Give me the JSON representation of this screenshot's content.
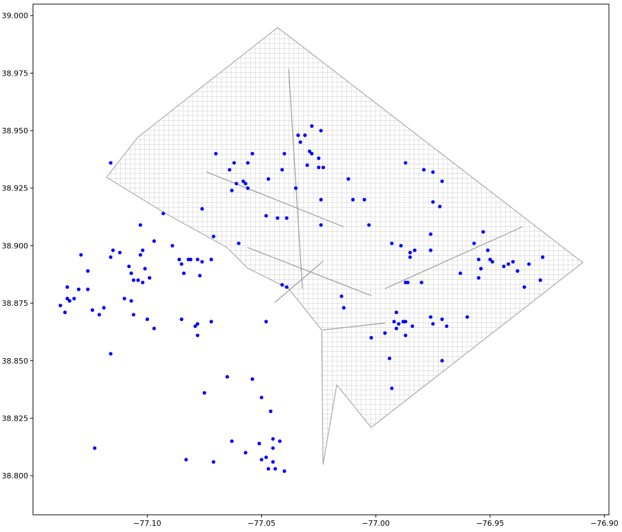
{
  "chart_data": {
    "type": "scatter",
    "color": "#0000ff",
    "xlim": [
      -77.15,
      -76.898
    ],
    "ylim": [
      38.783,
      39.005
    ],
    "xticks": [
      {
        "value": -77.1,
        "label": "−77.10"
      },
      {
        "value": -77.05,
        "label": "−77.05"
      },
      {
        "value": -77.0,
        "label": "−77.00"
      },
      {
        "value": -76.95,
        "label": "−76.95"
      },
      {
        "value": -76.9,
        "label": "−76.90"
      }
    ],
    "yticks": [
      {
        "value": 38.8,
        "label": "38.800"
      },
      {
        "value": 38.825,
        "label": "38.825"
      },
      {
        "value": 38.85,
        "label": "38.850"
      },
      {
        "value": 38.875,
        "label": "38.875"
      },
      {
        "value": 38.9,
        "label": "38.900"
      },
      {
        "value": 38.925,
        "label": "38.925"
      },
      {
        "value": 38.95,
        "label": "38.950"
      },
      {
        "value": 38.975,
        "label": "38.975"
      },
      {
        "value": 39.0,
        "label": "39.000"
      }
    ],
    "x": [
      -77.116,
      -77.093,
      -77.076,
      -77.07,
      -77.071,
      -77.064,
      -77.062,
      -77.063,
      -77.061,
      -77.058,
      -77.057,
      -77.056,
      -77.056,
      -77.054,
      -77.06,
      -77.048,
      -77.047,
      -77.043,
      -77.04,
      -77.039,
      -77.041,
      -77.035,
      -77.034,
      -77.033,
      -77.031,
      -77.03,
      -77.029,
      -77.028,
      -77.028,
      -77.025,
      -77.024,
      -77.025,
      -77.023,
      -77.024,
      -77.024,
      -77.041,
      -77.039,
      -77.015,
      -77.014,
      -77.012,
      -77.01,
      -77.005,
      -77.003,
      -76.987,
      -76.979,
      -76.975,
      -76.971,
      -76.975,
      -76.972,
      -76.993,
      -76.989,
      -76.985,
      -76.983,
      -76.976,
      -76.976,
      -76.987,
      -76.986,
      -76.98,
      -76.985,
      -76.991,
      -76.992,
      -76.99,
      -76.991,
      -76.988,
      -76.987,
      -76.987,
      -76.984,
      -76.976,
      -76.975,
      -76.971,
      -76.969,
      -76.996,
      -77.002,
      -76.994,
      -76.993,
      -76.971,
      -76.96,
      -76.963,
      -76.957,
      -76.953,
      -76.951,
      -76.95,
      -76.954,
      -76.955,
      -76.955,
      -76.949,
      -76.944,
      -76.942,
      -76.94,
      -76.938,
      -76.933,
      -76.935,
      -76.927,
      -76.928,
      -77.135,
      -77.138,
      -77.136,
      -77.135,
      -77.134,
      -77.132,
      -77.13,
      -77.129,
      -77.126,
      -77.126,
      -77.124,
      -77.121,
      -77.119,
      -77.116,
      -77.115,
      -77.112,
      -77.11,
      -77.108,
      -77.107,
      -77.107,
      -77.106,
      -77.106,
      -77.104,
      -77.102,
      -77.103,
      -77.103,
      -77.102,
      -77.101,
      -77.1,
      -77.099,
      -77.097,
      -77.097,
      -77.116,
      -77.123,
      -77.089,
      -77.086,
      -77.085,
      -77.084,
      -77.082,
      -77.081,
      -77.078,
      -77.076,
      -77.072,
      -77.077,
      -77.079,
      -77.078,
      -77.078,
      -77.085,
      -77.072,
      -77.048,
      -77.075,
      -77.065,
      -77.054,
      -77.05,
      -77.046,
      -77.063,
      -77.057,
      -77.051,
      -77.05,
      -77.048,
      -77.045,
      -77.047,
      -77.045,
      -77.045,
      -77.042,
      -77.044,
      -77.04,
      -77.083,
      -77.071
    ],
    "values": [
      38.936,
      38.914,
      38.916,
      38.94,
      38.904,
      38.933,
      38.936,
      38.924,
      38.927,
      38.928,
      38.927,
      38.936,
      38.925,
      38.94,
      38.901,
      38.913,
      38.929,
      38.912,
      38.94,
      38.912,
      38.933,
      38.925,
      38.948,
      38.945,
      38.948,
      38.935,
      38.941,
      38.952,
      38.94,
      38.938,
      38.95,
      38.934,
      38.934,
      38.92,
      38.909,
      38.883,
      38.882,
      38.878,
      38.873,
      38.929,
      38.92,
      38.92,
      38.909,
      38.936,
      38.933,
      38.932,
      38.928,
      38.919,
      38.917,
      38.901,
      38.9,
      38.897,
      38.898,
      38.905,
      38.898,
      38.884,
      38.884,
      38.884,
      38.895,
      38.871,
      38.867,
      38.866,
      38.864,
      38.867,
      38.867,
      38.861,
      38.865,
      38.869,
      38.866,
      38.868,
      38.865,
      38.862,
      38.86,
      38.851,
      38.838,
      38.85,
      38.869,
      38.888,
      38.901,
      38.906,
      38.898,
      38.894,
      38.89,
      38.894,
      38.886,
      38.893,
      38.891,
      38.892,
      38.893,
      38.889,
      38.892,
      38.882,
      38.895,
      38.885,
      38.877,
      38.874,
      38.871,
      38.882,
      38.876,
      38.877,
      38.881,
      38.896,
      38.889,
      38.881,
      38.872,
      38.87,
      38.873,
      38.895,
      38.898,
      38.897,
      38.877,
      38.891,
      38.888,
      38.876,
      38.87,
      38.885,
      38.885,
      38.884,
      38.896,
      38.909,
      38.898,
      38.89,
      38.868,
      38.886,
      38.902,
      38.864,
      38.853,
      38.812,
      38.9,
      38.894,
      38.892,
      38.888,
      38.894,
      38.894,
      38.894,
      38.893,
      38.894,
      38.887,
      38.865,
      38.866,
      38.861,
      38.868,
      38.867,
      38.867,
      38.836,
      38.843,
      38.842,
      38.834,
      38.828,
      38.815,
      38.81,
      38.814,
      38.807,
      38.808,
      38.806,
      38.803,
      38.816,
      38.812,
      38.815,
      38.803,
      38.802,
      38.807,
      38.806
    ]
  }
}
